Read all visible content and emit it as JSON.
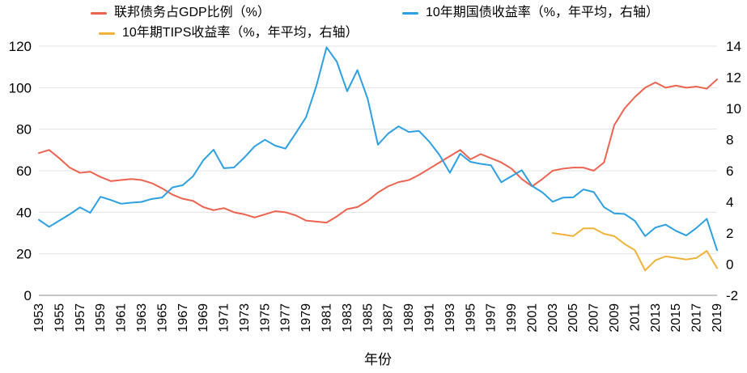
{
  "chart_data": {
    "type": "line",
    "title": "",
    "xlabel": "年份",
    "ylabel_left": "",
    "ylabel_right": "",
    "x_min": 1953,
    "x_max": 2019,
    "x_tick_labels": [
      1953,
      1955,
      1957,
      1959,
      1961,
      1963,
      1965,
      1967,
      1969,
      1971,
      1973,
      1975,
      1977,
      1979,
      1981,
      1983,
      1985,
      1987,
      1989,
      1991,
      1993,
      1995,
      1997,
      1999,
      2001,
      2003,
      2005,
      2007,
      2009,
      2011,
      2013,
      2015,
      2017,
      2019
    ],
    "left_axis": {
      "min": 0,
      "max": 120,
      "step": 20
    },
    "right_axis": {
      "min": -2,
      "max": 14,
      "step": 2
    },
    "grid": "horizontal",
    "legend_position": "top",
    "series": [
      {
        "name": "联邦债务占GDP比例（%）",
        "axis": "left",
        "color": "#ec6350",
        "x_start": 1953,
        "values": [
          68.5,
          70,
          66,
          61.5,
          59,
          59.5,
          57,
          55,
          55.5,
          56,
          55.5,
          54,
          51.5,
          48.5,
          46.5,
          45.5,
          42.5,
          41,
          42,
          40,
          39,
          37.5,
          39,
          40.5,
          40,
          38.5,
          36,
          35.5,
          35,
          38,
          41.5,
          42.5,
          45.5,
          49.5,
          52.5,
          54.5,
          55.5,
          58,
          61,
          64,
          67,
          70,
          65.5,
          68,
          66,
          64,
          61,
          56,
          52.5,
          56,
          60,
          61,
          61.5,
          61.5,
          60,
          64,
          82,
          90,
          95.5,
          100,
          102.5,
          100,
          101,
          100,
          100.5,
          99.5,
          104
        ]
      },
      {
        "name": "10年期国债收益率（%，年平均，右轴）",
        "axis": "right",
        "color": "#2da0e1",
        "x_start": 1953,
        "values": [
          2.85,
          2.4,
          2.8,
          3.2,
          3.65,
          3.3,
          4.33,
          4.12,
          3.88,
          3.95,
          4.0,
          4.19,
          4.28,
          4.93,
          5.07,
          5.64,
          6.67,
          7.35,
          6.16,
          6.21,
          6.85,
          7.56,
          7.99,
          7.61,
          7.42,
          8.41,
          9.43,
          11.43,
          13.92,
          13.0,
          11.1,
          12.46,
          10.62,
          7.67,
          8.39,
          8.85,
          8.49,
          8.55,
          7.86,
          7.0,
          5.87,
          7.09,
          6.57,
          6.44,
          6.35,
          5.26,
          5.65,
          6.03,
          5.02,
          4.61,
          4.01,
          4.27,
          4.29,
          4.8,
          4.63,
          3.66,
          3.26,
          3.22,
          2.78,
          1.8,
          2.35,
          2.54,
          2.14,
          1.84,
          2.33,
          2.91,
          0.9
        ]
      },
      {
        "name": "10年期TIPS收益率（%，年平均，右轴）",
        "axis": "right",
        "color": "#f0b33a",
        "x_start": 2003,
        "values": [
          2.0,
          1.9,
          1.8,
          2.3,
          2.3,
          1.95,
          1.8,
          1.3,
          0.9,
          -0.4,
          0.25,
          0.5,
          0.4,
          0.3,
          0.4,
          0.85,
          -0.25
        ]
      }
    ]
  }
}
